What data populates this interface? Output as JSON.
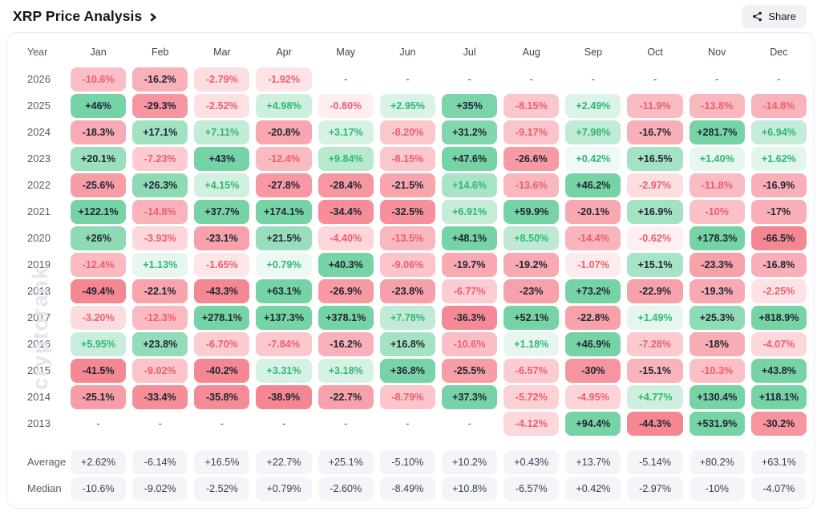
{
  "header": {
    "title": "XRP Price Analysis",
    "share_label": "Share"
  },
  "watermark": "cryptorank",
  "chart_data": {
    "type": "heatmap",
    "title": "XRP Price Analysis",
    "legend_note": "green = positive monthly return, red = negative monthly return, intensity scales with magnitude",
    "empty_marker": "-",
    "columns": [
      "Year",
      "Jan",
      "Feb",
      "Mar",
      "Apr",
      "May",
      "Jun",
      "Jul",
      "Aug",
      "Sep",
      "Oct",
      "Nov",
      "Dec"
    ],
    "rows": [
      {
        "year": "2026",
        "values": [
          "-10.6%",
          "-16.2%",
          "-2.79%",
          "-1.92%",
          "-",
          "-",
          "-",
          "-",
          "-",
          "-",
          "-",
          "-"
        ]
      },
      {
        "year": "2025",
        "values": [
          "+46%",
          "-29.3%",
          "-2.52%",
          "+4.98%",
          "-0.80%",
          "+2.95%",
          "+35%",
          "-8.15%",
          "+2.49%",
          "-11.9%",
          "-13.8%",
          "-14.8%"
        ]
      },
      {
        "year": "2024",
        "values": [
          "-18.3%",
          "+17.1%",
          "+7.11%",
          "-20.8%",
          "+3.17%",
          "-8.20%",
          "+31.2%",
          "-9.17%",
          "+7.98%",
          "-16.7%",
          "+281.7%",
          "+6.94%"
        ]
      },
      {
        "year": "2023",
        "values": [
          "+20.1%",
          "-7.23%",
          "+43%",
          "-12.4%",
          "+9.84%",
          "-8.15%",
          "+47.6%",
          "-26.6%",
          "+0.42%",
          "+16.5%",
          "+1.40%",
          "+1.62%"
        ]
      },
      {
        "year": "2022",
        "values": [
          "-25.6%",
          "+26.3%",
          "+4.15%",
          "-27.8%",
          "-28.4%",
          "-21.5%",
          "+14.6%",
          "-13.6%",
          "+46.2%",
          "-2.97%",
          "-11.8%",
          "-16.9%"
        ]
      },
      {
        "year": "2021",
        "values": [
          "+122.1%",
          "-14.8%",
          "+37.7%",
          "+174.1%",
          "-34.4%",
          "-32.5%",
          "+6.91%",
          "+59.9%",
          "-20.1%",
          "+16.9%",
          "-10%",
          "-17%"
        ]
      },
      {
        "year": "2020",
        "values": [
          "+26%",
          "-3.93%",
          "-23.1%",
          "+21.5%",
          "-4.40%",
          "-13.5%",
          "+48.1%",
          "+8.50%",
          "-14.4%",
          "-0.62%",
          "+178.3%",
          "-66.5%"
        ]
      },
      {
        "year": "2019",
        "values": [
          "-12.4%",
          "+1.13%",
          "-1.65%",
          "+0.79%",
          "+40.3%",
          "-9.06%",
          "-19.7%",
          "-19.2%",
          "-1.07%",
          "+15.1%",
          "-23.3%",
          "-16.8%"
        ]
      },
      {
        "year": "2018",
        "values": [
          "-49.4%",
          "-22.1%",
          "-43.3%",
          "+63.1%",
          "-26.9%",
          "-23.8%",
          "-6.77%",
          "-23%",
          "+73.2%",
          "-22.9%",
          "-19.3%",
          "-2.25%"
        ]
      },
      {
        "year": "2017",
        "values": [
          "-3.20%",
          "-12.3%",
          "+278.1%",
          "+137.3%",
          "+378.1%",
          "+7.78%",
          "-36.3%",
          "+52.1%",
          "-22.8%",
          "+1.49%",
          "+25.3%",
          "+818.9%"
        ]
      },
      {
        "year": "2016",
        "values": [
          "+5.95%",
          "+23.8%",
          "-6.70%",
          "-7.84%",
          "-16.2%",
          "+16.8%",
          "-10.6%",
          "+1.18%",
          "+46.9%",
          "-7.28%",
          "-18%",
          "-4.07%"
        ]
      },
      {
        "year": "2015",
        "values": [
          "-41.5%",
          "-9.02%",
          "-40.2%",
          "+3.31%",
          "+3.18%",
          "+36.8%",
          "-25.5%",
          "-6.57%",
          "-30%",
          "-15.1%",
          "-10.3%",
          "+43.8%"
        ]
      },
      {
        "year": "2014",
        "values": [
          "-25.1%",
          "-33.4%",
          "-35.8%",
          "-38.9%",
          "-22.7%",
          "-8.79%",
          "+37.3%",
          "-5.72%",
          "-4.95%",
          "+4.77%",
          "+130.4%",
          "+118.1%"
        ]
      },
      {
        "year": "2013",
        "values": [
          "-",
          "-",
          "-",
          "-",
          "-",
          "-",
          "-",
          "-4.12%",
          "+94.4%",
          "-44.3%",
          "+531.9%",
          "-30.2%"
        ]
      }
    ],
    "stats": [
      {
        "label": "Average",
        "values": [
          "+2.62%",
          "-6.14%",
          "+16.5%",
          "+22.7%",
          "+25.1%",
          "-5.10%",
          "+10.2%",
          "+0.43%",
          "+13.7%",
          "-5.14%",
          "+80.2%",
          "+63.1%"
        ]
      },
      {
        "label": "Median",
        "values": [
          "-10.6%",
          "-9.02%",
          "-2.52%",
          "+0.79%",
          "-2.60%",
          "-8.49%",
          "+10.8%",
          "-6.57%",
          "+0.42%",
          "-2.97%",
          "-10%",
          "-4.07%"
        ]
      }
    ],
    "colors": {
      "positive_base": "#2fbc78",
      "negative_base": "#f0495b",
      "text_dark": "#202633",
      "text_positive": "#2eb872",
      "text_negative": "#ee5d6e",
      "stats_cell_bg": "#f4f5f8"
    }
  }
}
